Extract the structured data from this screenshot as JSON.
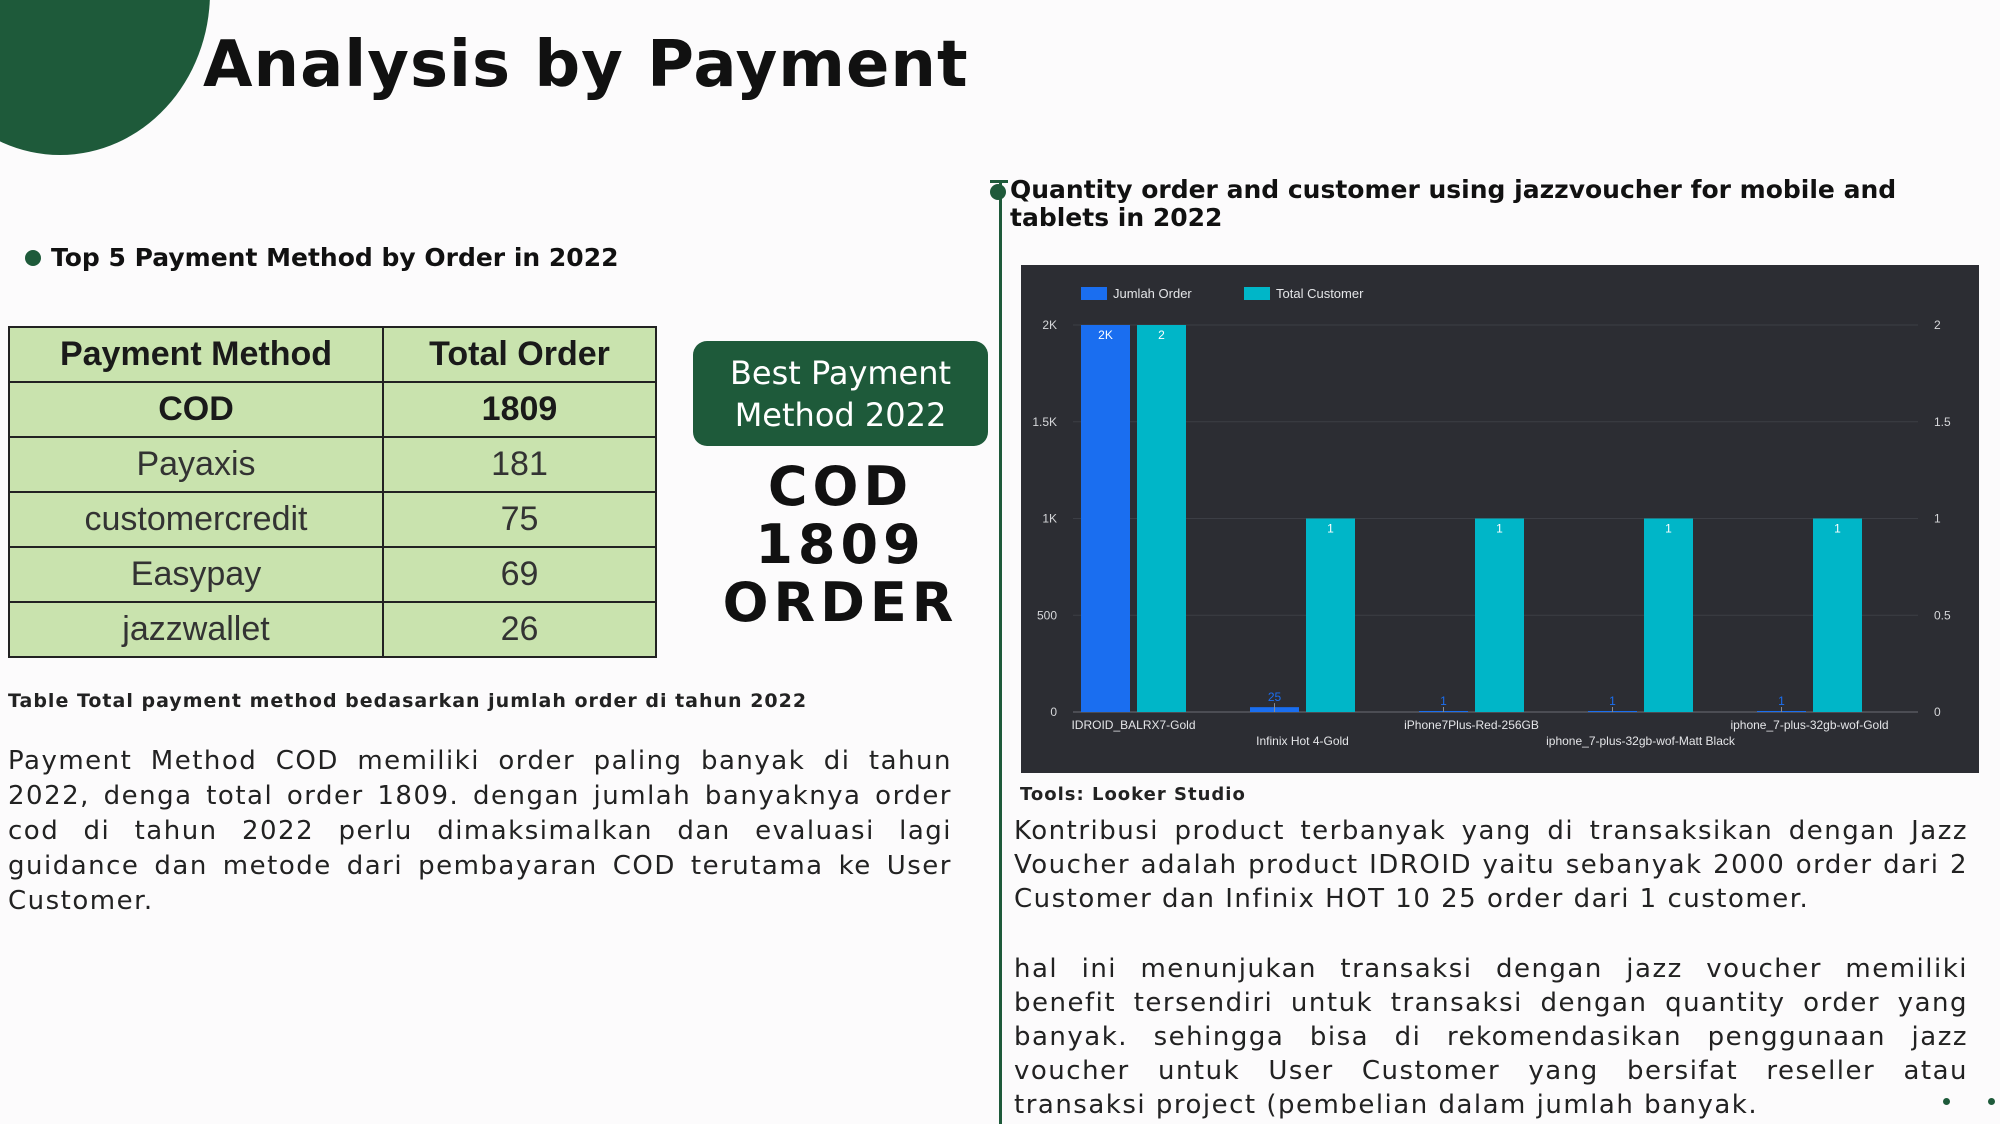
{
  "page": {
    "title": "Analysis by Payment",
    "accent_color": "#1e5a3a"
  },
  "left_section": {
    "title": "Top 5 Payment Method by Order in 2022",
    "table": {
      "headers": [
        "Payment Method",
        "Total Order"
      ],
      "rows": [
        [
          "COD",
          "1809"
        ],
        [
          "Payaxis",
          "181"
        ],
        [
          "customercredit",
          "75"
        ],
        [
          "Easypay",
          "69"
        ],
        [
          "jazzwallet",
          "26"
        ]
      ],
      "fill_color": "#c9e3ae"
    },
    "caption": "Table Total payment method bedasarkan jumlah order di tahun 2022",
    "description": "Payment Method COD memiliki order paling banyak di tahun 2022, denga total order 1809. dengan jumlah banyaknya order cod di tahun 2022 perlu dimaksimalkan dan evaluasi lagi guidance dan metode dari pembayaran COD terutama ke User Customer."
  },
  "best_box": {
    "label": "Best Payment Method 2022",
    "value_line1": "COD",
    "value_line2": "1809",
    "value_line3": "ORDER"
  },
  "right_section": {
    "title": "Quantity order and customer using jazzvoucher for mobile and tablets in 2022",
    "tools_label": "Tools: Looker Studio",
    "paragraph1": "Kontribusi product terbanyak yang di transaksikan dengan Jazz Voucher adalah product IDROID yaitu sebanyak 2000 order dari 2 Customer dan Infinix HOT 10 25 order dari 1 customer.",
    "paragraph2": "hal ini menunjukan transaksi dengan jazz voucher memiliki benefit tersendiri untuk transaksi dengan quantity order yang banyak. sehingga bisa di rekomendasikan penggunaan jazz voucher untuk User Customer yang bersifat reseller atau transaksi project (pembelian dalam jumlah banyak."
  },
  "chart_data": {
    "type": "bar",
    "background": "#2c2d33",
    "categories": [
      "IDROID_BALRX7-Gold",
      "Infinix Hot 4-Gold",
      "iPhone7Plus-Red-256GB",
      "iphone_7-plus-32gb-wof-Matt Black",
      "iphone_7-plus-32gb-wof-Gold"
    ],
    "series": [
      {
        "name": "Jumlah Order",
        "axis": "left",
        "color": "#1a6ef0",
        "values": [
          2000,
          25,
          1,
          1,
          1
        ],
        "data_labels": [
          "2K",
          "25",
          "1",
          "1",
          "1"
        ]
      },
      {
        "name": "Total Customer",
        "axis": "right",
        "color": "#00b6c8",
        "values": [
          2,
          1,
          1,
          1,
          1
        ],
        "data_labels": [
          "2",
          "1",
          "1",
          "1",
          "1"
        ]
      }
    ],
    "left_axis": {
      "ylim": [
        0,
        2000
      ],
      "ticks": [
        "0",
        "500",
        "1K",
        "1.5K",
        "2K"
      ],
      "tick_values": [
        0,
        500,
        1000,
        1500,
        2000
      ]
    },
    "right_axis": {
      "ylim": [
        0,
        2
      ],
      "ticks": [
        "0",
        "0.5",
        "1",
        "1.5",
        "2"
      ],
      "tick_values": [
        0,
        0.5,
        1,
        1.5,
        2
      ]
    },
    "legend_position": "top-left",
    "grid": true
  }
}
